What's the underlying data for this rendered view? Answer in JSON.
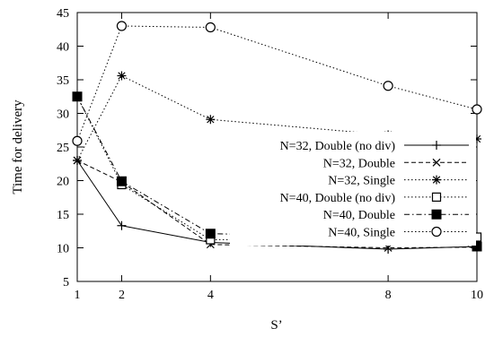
{
  "chart_data": {
    "type": "line",
    "xlabel": "S’",
    "ylabel": "Time for delivery",
    "x_ticks": [
      1,
      2,
      4,
      8,
      10
    ],
    "y_ticks": [
      5,
      10,
      15,
      20,
      25,
      30,
      35,
      40,
      45
    ],
    "xlim": [
      1,
      10
    ],
    "ylim": [
      5,
      45
    ],
    "grid": false,
    "legend_position": "right",
    "series": [
      {
        "name": "N=32, Double (no div)",
        "marker": "plus",
        "dash": "solid",
        "x": [
          1,
          2,
          4,
          8,
          10
        ],
        "y": [
          23.0,
          13.3,
          10.8,
          9.8,
          10.2
        ]
      },
      {
        "name": "N=32, Double",
        "marker": "cross",
        "dash": "dashed",
        "x": [
          1,
          2,
          4,
          8,
          10
        ],
        "y": [
          23.0,
          19.8,
          10.5,
          10.0,
          10.1
        ]
      },
      {
        "name": "N=32, Single",
        "marker": "star",
        "dash": "dotted",
        "x": [
          1,
          2,
          4,
          8,
          10
        ],
        "y": [
          23.0,
          35.6,
          29.1,
          26.8,
          26.2
        ]
      },
      {
        "name": "N=40, Double (no div)",
        "marker": "open-square",
        "dash": "dotted",
        "x": [
          1,
          2,
          4,
          8,
          10
        ],
        "y": [
          32.5,
          19.4,
          11.2,
          11.4,
          11.6
        ]
      },
      {
        "name": "N=40, Double",
        "marker": "filled-square",
        "dash": "dashdot",
        "x": [
          1,
          2,
          4,
          8,
          10
        ],
        "y": [
          32.5,
          19.9,
          12.1,
          11.7,
          10.2
        ]
      },
      {
        "name": "N=40, Single",
        "marker": "open-circle",
        "dash": "dotted",
        "x": [
          1,
          2,
          4,
          8,
          10
        ],
        "y": [
          25.9,
          43.0,
          42.8,
          34.1,
          30.6
        ]
      }
    ]
  }
}
